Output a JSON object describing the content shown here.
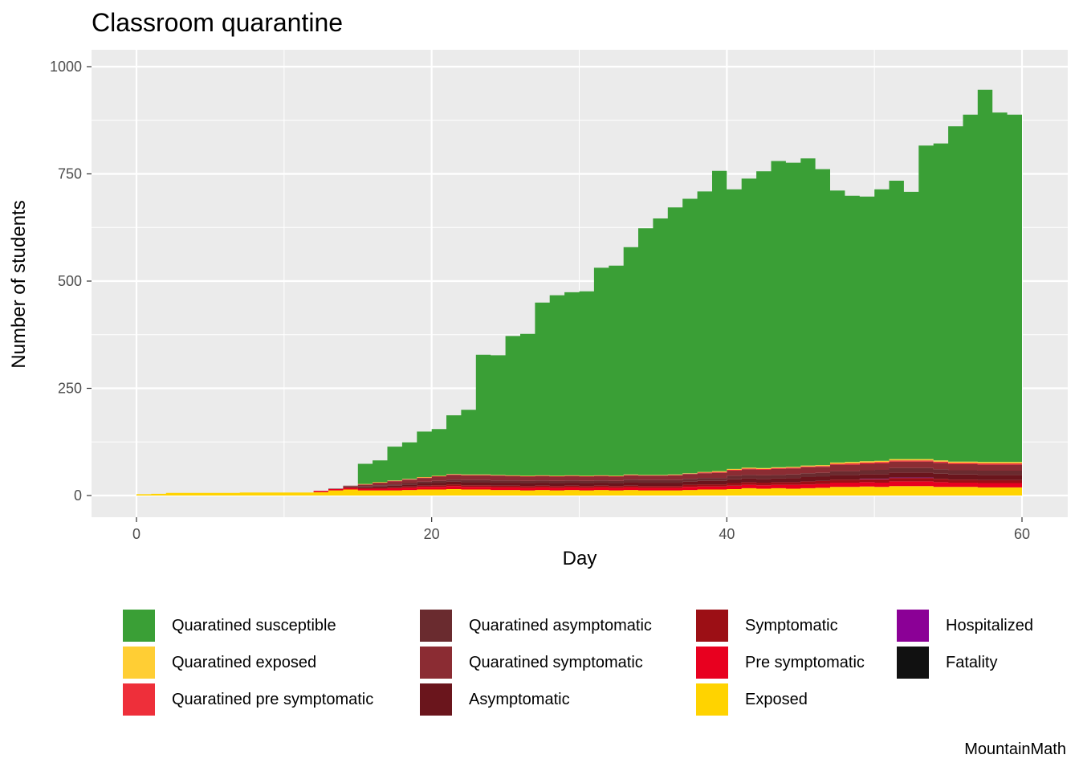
{
  "chart_data": {
    "type": "area",
    "stacked": true,
    "step": true,
    "title": "Classroom quarantine",
    "xlabel": "Day",
    "ylabel": "Number of students",
    "caption": "MountainMath",
    "xlim": [
      0,
      60
    ],
    "ylim": [
      0,
      1000
    ],
    "x_ticks": [
      0,
      20,
      40,
      60
    ],
    "y_ticks": [
      0,
      250,
      500,
      750,
      1000
    ],
    "grid": true,
    "legend_position": "bottom",
    "x": [
      0,
      1,
      2,
      3,
      4,
      5,
      6,
      7,
      8,
      9,
      10,
      11,
      12,
      13,
      14,
      15,
      16,
      17,
      18,
      19,
      20,
      21,
      22,
      23,
      24,
      25,
      26,
      27,
      28,
      29,
      30,
      31,
      32,
      33,
      34,
      35,
      36,
      37,
      38,
      39,
      40,
      41,
      42,
      43,
      44,
      45,
      46,
      47,
      48,
      49,
      50,
      51,
      52,
      53,
      54,
      55,
      56,
      57,
      58,
      59,
      60
    ],
    "series": [
      {
        "name": "Exposed",
        "color": "#FFD300",
        "values": [
          3,
          4,
          6,
          6,
          6,
          6,
          6,
          7,
          7,
          7,
          7,
          7,
          8,
          12,
          14,
          12,
          12,
          12,
          13,
          14,
          14,
          15,
          14,
          14,
          13,
          13,
          12,
          13,
          12,
          13,
          12,
          13,
          12,
          13,
          12,
          12,
          12,
          13,
          14,
          14,
          15,
          17,
          16,
          17,
          16,
          17,
          18,
          20,
          20,
          21,
          20,
          22,
          22,
          22,
          20,
          20,
          20,
          19,
          19,
          19,
          19
        ]
      },
      {
        "name": "Pre symptomatic",
        "color": "#E8001F",
        "values": [
          0,
          0,
          0,
          0,
          0,
          0,
          0,
          0,
          0,
          0,
          0,
          0,
          3,
          3,
          4,
          4,
          4,
          5,
          5,
          6,
          6,
          7,
          6,
          6,
          6,
          6,
          6,
          6,
          6,
          6,
          6,
          6,
          6,
          6,
          6,
          6,
          6,
          7,
          7,
          7,
          8,
          8,
          8,
          8,
          9,
          9,
          9,
          10,
          10,
          10,
          10,
          11,
          11,
          11,
          11,
          10,
          10,
          10,
          10,
          10,
          10
        ]
      },
      {
        "name": "Symptomatic",
        "color": "#9C0F15",
        "values": [
          0,
          0,
          0,
          0,
          0,
          0,
          0,
          0,
          0,
          0,
          0,
          0,
          0,
          0,
          1,
          1,
          2,
          2,
          3,
          3,
          4,
          4,
          4,
          4,
          4,
          4,
          4,
          4,
          4,
          4,
          4,
          4,
          4,
          4,
          4,
          4,
          4,
          5,
          5,
          5,
          6,
          6,
          6,
          6,
          6,
          7,
          7,
          7,
          7,
          7,
          8,
          8,
          8,
          8,
          8,
          7,
          7,
          7,
          7,
          7,
          7
        ]
      },
      {
        "name": "Hospitalized",
        "color": "#8B0096",
        "values": [
          0,
          0,
          0,
          0,
          0,
          0,
          0,
          0,
          0,
          0,
          0,
          0,
          0,
          0,
          0,
          0,
          0,
          0,
          0,
          0,
          0,
          0,
          0,
          0,
          0,
          0,
          0,
          0,
          0,
          0,
          0,
          0,
          0,
          0,
          0,
          0,
          0,
          0,
          0,
          0,
          0,
          0,
          0,
          0,
          0,
          0,
          0,
          0,
          0,
          1,
          1,
          1,
          1,
          1,
          0,
          0,
          0,
          0,
          0,
          0,
          0
        ]
      },
      {
        "name": "Fatality",
        "color": "#111111",
        "values": [
          0,
          0,
          0,
          0,
          0,
          0,
          0,
          0,
          0,
          0,
          0,
          0,
          0,
          0,
          0,
          0,
          0,
          0,
          0,
          0,
          0,
          0,
          0,
          0,
          0,
          0,
          0,
          0,
          0,
          0,
          0,
          0,
          0,
          0,
          0,
          0,
          0,
          0,
          0,
          0,
          0,
          0,
          0,
          0,
          0,
          0,
          0,
          0,
          0,
          0,
          0,
          0,
          0,
          0,
          0,
          0,
          0,
          0,
          0,
          0,
          0
        ]
      },
      {
        "name": "Asymptomatic",
        "color": "#6A151C",
        "values": [
          0,
          0,
          0,
          0,
          0,
          0,
          0,
          0,
          0,
          0,
          0,
          0,
          0,
          1,
          2,
          3,
          3,
          4,
          4,
          5,
          5,
          6,
          6,
          6,
          6,
          6,
          6,
          6,
          6,
          6,
          6,
          6,
          6,
          7,
          7,
          7,
          7,
          7,
          8,
          8,
          9,
          9,
          9,
          9,
          10,
          10,
          10,
          11,
          11,
          11,
          11,
          12,
          12,
          12,
          12,
          12,
          12,
          12,
          12,
          12,
          12
        ]
      },
      {
        "name": "Quaratined asymptomatic",
        "color": "#6A2B2F",
        "values": [
          0,
          0,
          0,
          0,
          0,
          0,
          0,
          0,
          0,
          0,
          0,
          0,
          0,
          0,
          1,
          2,
          3,
          3,
          4,
          4,
          5,
          5,
          6,
          6,
          6,
          6,
          6,
          6,
          6,
          6,
          6,
          6,
          6,
          7,
          7,
          7,
          7,
          7,
          7,
          7,
          8,
          8,
          8,
          8,
          8,
          9,
          9,
          9,
          9,
          9,
          10,
          10,
          10,
          10,
          10,
          10,
          10,
          10,
          10,
          10,
          10
        ]
      },
      {
        "name": "Quaratined symptomatic",
        "color": "#8B2C33",
        "values": [
          0,
          0,
          0,
          0,
          0,
          0,
          0,
          0,
          0,
          0,
          0,
          0,
          0,
          0,
          1,
          3,
          5,
          7,
          8,
          9,
          10,
          11,
          11,
          11,
          11,
          10,
          10,
          10,
          10,
          10,
          10,
          10,
          10,
          10,
          10,
          10,
          11,
          11,
          11,
          12,
          12,
          13,
          13,
          14,
          14,
          14,
          14,
          15,
          15,
          15,
          15,
          15,
          15,
          15,
          15,
          14,
          14,
          14,
          14,
          14,
          14
        ]
      },
      {
        "name": "Quaratined pre symptomatic",
        "color": "#EE2F3A",
        "values": [
          0,
          0,
          0,
          0,
          0,
          0,
          0,
          0,
          0,
          0,
          0,
          0,
          0,
          0,
          0,
          1,
          1,
          1,
          1,
          1,
          1,
          1,
          1,
          1,
          1,
          1,
          1,
          1,
          1,
          1,
          1,
          1,
          1,
          1,
          1,
          1,
          1,
          1,
          2,
          2,
          2,
          2,
          2,
          2,
          2,
          2,
          2,
          2,
          3,
          3,
          3,
          3,
          3,
          3,
          3,
          3,
          3,
          3,
          3,
          3,
          3
        ]
      },
      {
        "name": "Quaratined exposed",
        "color": "#FFCE34",
        "values": [
          0,
          0,
          0,
          0,
          0,
          0,
          0,
          0,
          0,
          0,
          0,
          0,
          0,
          0,
          0,
          1,
          1,
          1,
          1,
          1,
          1,
          1,
          1,
          1,
          1,
          1,
          1,
          1,
          1,
          1,
          1,
          1,
          1,
          1,
          1,
          1,
          1,
          1,
          1,
          2,
          2,
          2,
          2,
          2,
          2,
          2,
          2,
          3,
          3,
          3,
          3,
          3,
          3,
          3,
          3,
          3,
          3,
          3,
          3,
          3,
          3
        ]
      },
      {
        "name": "Quaratined susceptible",
        "color": "#3A9F36",
        "values": [
          0,
          0,
          0,
          0,
          0,
          0,
          0,
          0,
          0,
          0,
          0,
          0,
          0,
          0,
          0,
          47,
          51,
          79,
          85,
          106,
          109,
          137,
          151,
          279,
          279,
          325,
          331,
          403,
          421,
          427,
          430,
          484,
          490,
          530,
          575,
          598,
          623,
          640,
          654,
          700,
          652,
          674,
          692,
          714,
          709,
          716,
          690,
          634,
          621,
          617,
          633,
          649,
          623,
          731,
          739,
          782,
          809,
          868,
          815,
          810,
          801
        ]
      }
    ]
  }
}
